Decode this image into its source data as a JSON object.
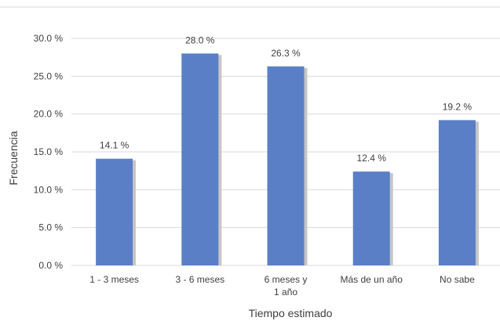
{
  "chart_data": {
    "type": "bar",
    "title": "",
    "xlabel": "Tiempo estimado",
    "ylabel": "Frecuencia",
    "categories": [
      [
        "1 - 3 meses"
      ],
      [
        "3 - 6 meses"
      ],
      [
        "6 meses y",
        "1 año"
      ],
      [
        "Más de un año"
      ],
      [
        "No sabe"
      ]
    ],
    "values": [
      14.1,
      28.0,
      26.3,
      12.4,
      19.2
    ],
    "value_labels": [
      "14.1 %",
      "28.0 %",
      "26.3 %",
      "12.4 %",
      "19.2 %"
    ],
    "ylim": [
      0,
      30
    ],
    "yticks": [
      0,
      5,
      10,
      15,
      20,
      25,
      30
    ],
    "ytick_labels": [
      "0.0 %",
      "5.0 %",
      "10.0 %",
      "15.0 %",
      "20.0 %",
      "25.0 %",
      "30.0 %"
    ],
    "grid": true,
    "legend": "none",
    "colors": {
      "bar": "#5b7fc7",
      "bar_shadow": "#c6c6c6",
      "grid": "#d9d9d9",
      "axis_title": "#5c6b34",
      "text": "#404040"
    }
  }
}
